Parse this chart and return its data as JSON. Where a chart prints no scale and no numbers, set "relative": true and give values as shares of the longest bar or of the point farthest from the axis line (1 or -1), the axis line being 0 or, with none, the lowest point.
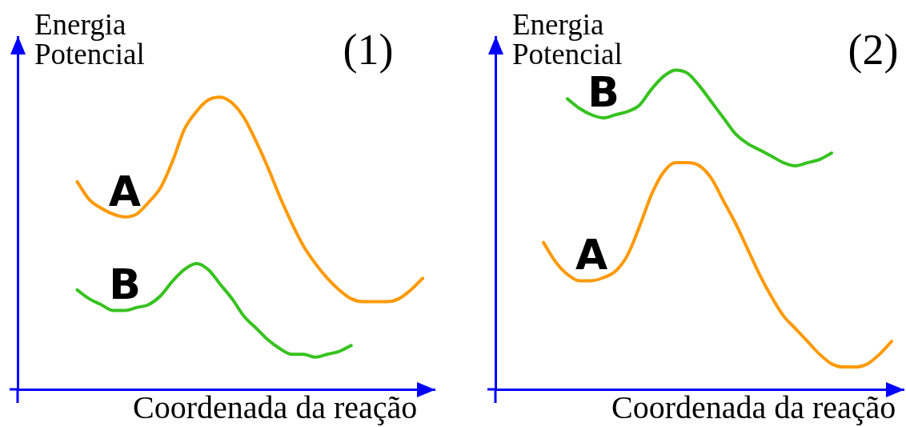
{
  "chart_data": [
    {
      "type": "line",
      "title": "(1)",
      "xlabel": "Coordenada da reação",
      "ylabel": "Energia Potencial",
      "relative": true,
      "marker": "none",
      "tick_labels": false,
      "categories": [
        null,
        null,
        null,
        null,
        null,
        null,
        null,
        null,
        null,
        null,
        null,
        null,
        null,
        null,
        null,
        null,
        null,
        null,
        null,
        null,
        null,
        null,
        null,
        null,
        null,
        null,
        null,
        null,
        null,
        null,
        null,
        null,
        null,
        null,
        null,
        null
      ],
      "series": [
        {
          "name": "A",
          "color": "#ff9900",
          "values": [
            null,
            null,
            null,
            null,
            null,
            0.71,
            0.65,
            0.62,
            0.6,
            0.59,
            0.6,
            0.64,
            0.69,
            0.78,
            0.89,
            0.95,
            0.99,
            1,
            0.98,
            0.93,
            0.85,
            0.76,
            0.66,
            0.57,
            0.49,
            0.43,
            0.38,
            0.34,
            0.31,
            0.3,
            0.3,
            0.3,
            0.31,
            0.34,
            0.38,
            null
          ]
        },
        {
          "name": "B",
          "color": "#36c21e",
          "values": [
            null,
            null,
            null,
            null,
            null,
            0.34,
            0.31,
            0.29,
            0.27,
            0.27,
            0.28,
            0.29,
            0.32,
            0.37,
            0.41,
            0.43,
            0.41,
            0.36,
            0.31,
            0.25,
            0.21,
            0.17,
            0.14,
            0.12,
            0.12,
            0.11,
            0.12,
            0.13,
            0.15,
            null,
            null,
            null,
            null,
            null,
            null,
            null
          ]
        }
      ]
    },
    {
      "type": "line",
      "title": "(2)",
      "xlabel": "Coordenada da reação",
      "ylabel": "Energia Potencial",
      "relative": true,
      "marker": "none",
      "tick_labels": false,
      "categories": [
        null,
        null,
        null,
        null,
        null,
        null,
        null,
        null,
        null,
        null,
        null,
        null,
        null,
        null,
        null,
        null,
        null,
        null,
        null,
        null,
        null,
        null,
        null,
        null,
        null,
        null,
        null,
        null,
        null,
        null,
        null,
        null,
        null,
        null,
        null
      ],
      "series": [
        {
          "name": "A",
          "color": "#ff9900",
          "values": [
            null,
            null,
            null,
            null,
            0.46,
            0.4,
            0.36,
            0.34,
            0.34,
            0.35,
            0.37,
            0.42,
            0.51,
            0.61,
            0.68,
            0.71,
            0.71,
            0.7,
            0.66,
            0.59,
            0.52,
            0.44,
            0.36,
            0.29,
            0.23,
            0.19,
            0.15,
            0.11,
            0.08,
            0.07,
            0.07,
            0.08,
            0.11,
            0.15,
            null
          ]
        },
        {
          "name": "B",
          "color": "#36c21e",
          "values": [
            null,
            null,
            null,
            null,
            null,
            null,
            0.91,
            0.88,
            0.86,
            0.85,
            0.86,
            0.87,
            0.89,
            0.94,
            0.98,
            1,
            0.99,
            0.95,
            0.9,
            0.85,
            0.8,
            0.77,
            0.75,
            0.73,
            0.71,
            0.7,
            0.71,
            0.72,
            0.74,
            null,
            null,
            null,
            null,
            null,
            null
          ]
        }
      ]
    }
  ]
}
